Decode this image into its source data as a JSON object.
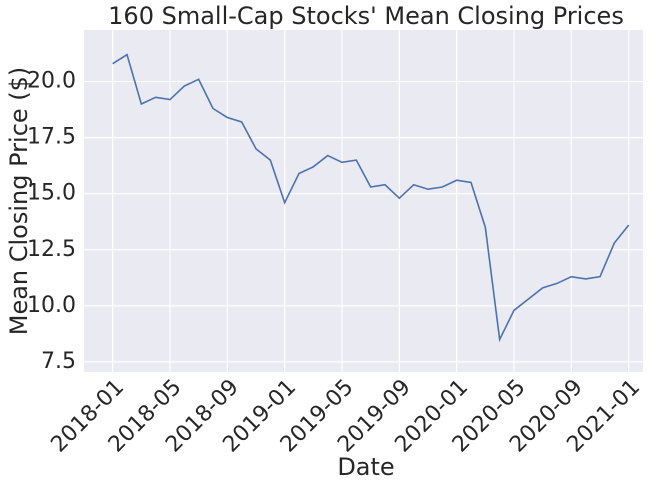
{
  "chart_data": {
    "type": "line",
    "title": "160 Small-Cap Stocks' Mean Closing Prices",
    "x_label": "Date",
    "y_label": "Mean Closing Price ($)",
    "x": [
      "2018-01",
      "2018-02",
      "2018-03",
      "2018-04",
      "2018-05",
      "2018-06",
      "2018-07",
      "2018-08",
      "2018-09",
      "2018-10",
      "2018-11",
      "2018-12",
      "2019-01",
      "2019-02",
      "2019-03",
      "2019-04",
      "2019-05",
      "2019-06",
      "2019-07",
      "2019-08",
      "2019-09",
      "2019-10",
      "2019-11",
      "2019-12",
      "2020-01",
      "2020-02",
      "2020-03",
      "2020-04",
      "2020-05",
      "2020-06",
      "2020-07",
      "2020-08",
      "2020-09",
      "2020-10",
      "2020-11",
      "2020-12",
      "2021-01"
    ],
    "series": [
      {
        "name": "Mean Closing Price",
        "color": "#4c72b0",
        "values": [
          20.8,
          21.2,
          19.0,
          19.3,
          19.2,
          19.8,
          20.1,
          18.8,
          18.4,
          18.2,
          17.0,
          16.5,
          14.6,
          15.9,
          16.2,
          16.7,
          16.4,
          16.5,
          15.3,
          15.4,
          14.8,
          15.4,
          15.2,
          15.3,
          15.6,
          15.5,
          13.5,
          8.5,
          9.8,
          10.3,
          10.8,
          11.0,
          11.3,
          11.2,
          11.3,
          12.8,
          13.6
        ]
      }
    ],
    "xlim": [
      "2017-11",
      "2021-02"
    ],
    "xticks": [
      "2018-01",
      "2018-05",
      "2018-09",
      "2019-01",
      "2019-05",
      "2019-09",
      "2020-01",
      "2020-05",
      "2020-09",
      "2021-01"
    ],
    "ylim": [
      7.05,
      22.3
    ],
    "yticks": [
      {
        "value": 7.5,
        "label": "7.5"
      },
      {
        "value": 10,
        "label": "10.0"
      },
      {
        "value": 12.5,
        "label": "12.5"
      },
      {
        "value": 15,
        "label": "15.0"
      },
      {
        "value": 17.5,
        "label": "17.5"
      },
      {
        "value": 20,
        "label": "20.0"
      }
    ],
    "grid": true
  }
}
